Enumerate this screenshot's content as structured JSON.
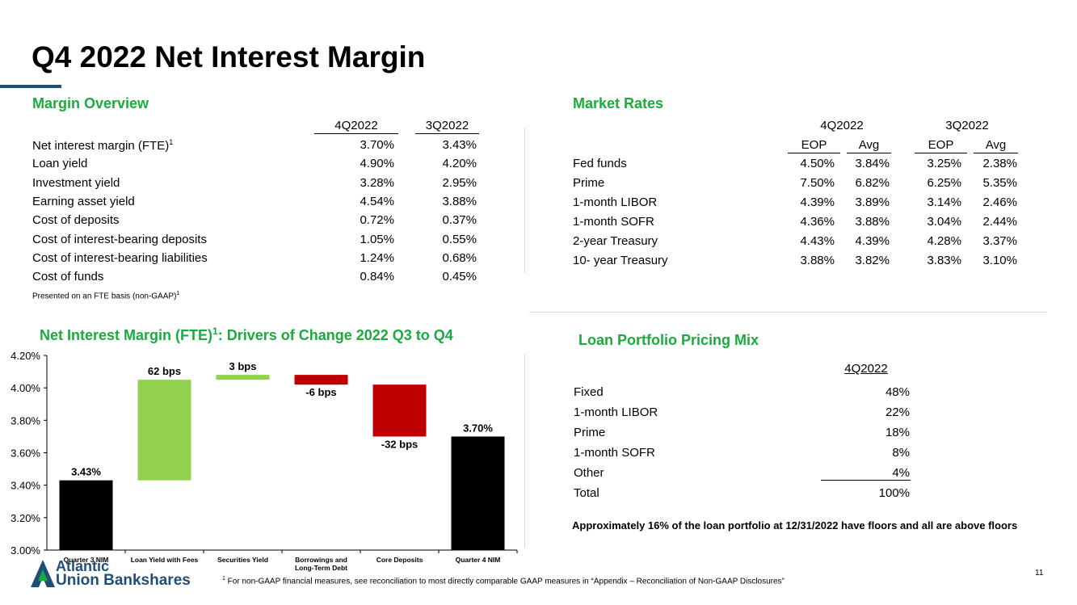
{
  "title": "Q4 2022 Net Interest Margin",
  "margin_overview": {
    "heading": "Margin Overview",
    "col1": "4Q2022",
    "col2": "3Q2022",
    "rows": [
      {
        "label": "Net interest margin  (FTE)",
        "sup": "1",
        "v1": "3.70%",
        "v2": "3.43%"
      },
      {
        "label": "Loan yield",
        "sup": "",
        "v1": "4.90%",
        "v2": "4.20%"
      },
      {
        "label": "Investment yield",
        "sup": "",
        "v1": "3.28%",
        "v2": "2.95%"
      },
      {
        "label": "Earning asset yield",
        "sup": "",
        "v1": "4.54%",
        "v2": "3.88%"
      },
      {
        "label": "Cost of deposits",
        "sup": "",
        "v1": "0.72%",
        "v2": "0.37%"
      },
      {
        "label": "Cost of interest-bearing deposits",
        "sup": "",
        "v1": "1.05%",
        "v2": "0.55%"
      },
      {
        "label": "Cost of interest-bearing liabilities",
        "sup": "",
        "v1": "1.24%",
        "v2": "0.68%"
      },
      {
        "label": "Cost of funds",
        "sup": "",
        "v1": "0.84%",
        "v2": "0.45%"
      }
    ],
    "note": "Presented on an FTE basis (non-GAAP)",
    "note_sup": "1"
  },
  "market_rates": {
    "heading": "Market Rates",
    "group1": "4Q2022",
    "group2": "3Q2022",
    "sub": [
      "EOP",
      "Avg",
      "EOP",
      "Avg"
    ],
    "rows": [
      {
        "label": "Fed funds",
        "vals": [
          "4.50%",
          "3.84%",
          "3.25%",
          "2.38%"
        ]
      },
      {
        "label": "Prime",
        "vals": [
          "7.50%",
          "6.82%",
          "6.25%",
          "5.35%"
        ]
      },
      {
        "label": "1-month LIBOR",
        "vals": [
          "4.39%",
          "3.89%",
          "3.14%",
          "2.46%"
        ]
      },
      {
        "label": "1-month SOFR",
        "vals": [
          "4.36%",
          "3.88%",
          "3.04%",
          "2.44%"
        ]
      },
      {
        "label": "2-year Treasury",
        "vals": [
          "4.43%",
          "4.39%",
          "4.28%",
          "3.37%"
        ]
      },
      {
        "label": "10- year Treasury",
        "vals": [
          "3.88%",
          "3.82%",
          "3.83%",
          "3.10%"
        ]
      }
    ]
  },
  "chart_title": {
    "main": "Net Interest Margin (FTE)",
    "sup": "1",
    "rest": ": Drivers of Change 2022 Q3 to Q4"
  },
  "chart_data": {
    "type": "bar",
    "subtype": "waterfall",
    "title": "Net Interest Margin (FTE)1: Drivers of Change 2022 Q3 to Q4",
    "categories": [
      "Quarter 3 NIM",
      "Loan Yield with Fees",
      "Securities Yield",
      "Borrowings and Long-Term Debt",
      "Core Deposits",
      "Quarter 4 NIM"
    ],
    "bars": [
      {
        "category": "Quarter 3 NIM",
        "kind": "total",
        "start": 3.0,
        "end": 3.43,
        "label": "3.43%",
        "color": "#000000"
      },
      {
        "category": "Loan Yield with Fees",
        "kind": "increase",
        "start": 3.43,
        "end": 4.05,
        "label": "62 bps",
        "color": "#92d050"
      },
      {
        "category": "Securities Yield",
        "kind": "increase",
        "start": 4.05,
        "end": 4.08,
        "label": "3 bps",
        "color": "#92d050"
      },
      {
        "category": "Borrowings and Long-Term Debt",
        "kind": "decrease",
        "start": 4.08,
        "end": 4.02,
        "label": "-6 bps",
        "color": "#c00000"
      },
      {
        "category": "Core Deposits",
        "kind": "decrease",
        "start": 4.02,
        "end": 3.7,
        "label": "-32 bps",
        "color": "#c00000"
      },
      {
        "category": "Quarter 4 NIM",
        "kind": "total",
        "start": 3.0,
        "end": 3.7,
        "label": "3.70%",
        "color": "#000000"
      }
    ],
    "ylim": [
      3.0,
      4.2
    ],
    "yticks": [
      "3.00%",
      "3.20%",
      "3.40%",
      "3.60%",
      "3.80%",
      "4.00%",
      "4.20%"
    ],
    "ytick_values": [
      3.0,
      3.2,
      3.4,
      3.6,
      3.8,
      4.0,
      4.2
    ]
  },
  "loan_mix": {
    "heading": "Loan Portfolio Pricing Mix",
    "col": "4Q2022",
    "rows": [
      {
        "label": "Fixed",
        "v": "48%"
      },
      {
        "label": "1-month LIBOR",
        "v": "22%"
      },
      {
        "label": "Prime",
        "v": "18%"
      },
      {
        "label": "1-month SOFR",
        "v": "8%"
      },
      {
        "label": "Other",
        "v": "4%"
      },
      {
        "label": "Total",
        "v": "100%"
      }
    ],
    "note": "Approximately 16% of the loan portfolio at 12/31/2022 have floors and all are above floors"
  },
  "logo": {
    "line1": "Atlantic",
    "line2": "Union Bankshares"
  },
  "footnote": {
    "sup": "1",
    "text": " For non-GAAP financial measures, see reconciliation to most directly comparable GAAP measures in “Appendix – Reconciliation of Non-GAAP Disclosures”"
  },
  "page_number": "11",
  "colors": {
    "accent_green": "#1aab3e",
    "navy": "#1f4e79",
    "bar_green": "#92d050",
    "bar_red": "#c00000"
  }
}
